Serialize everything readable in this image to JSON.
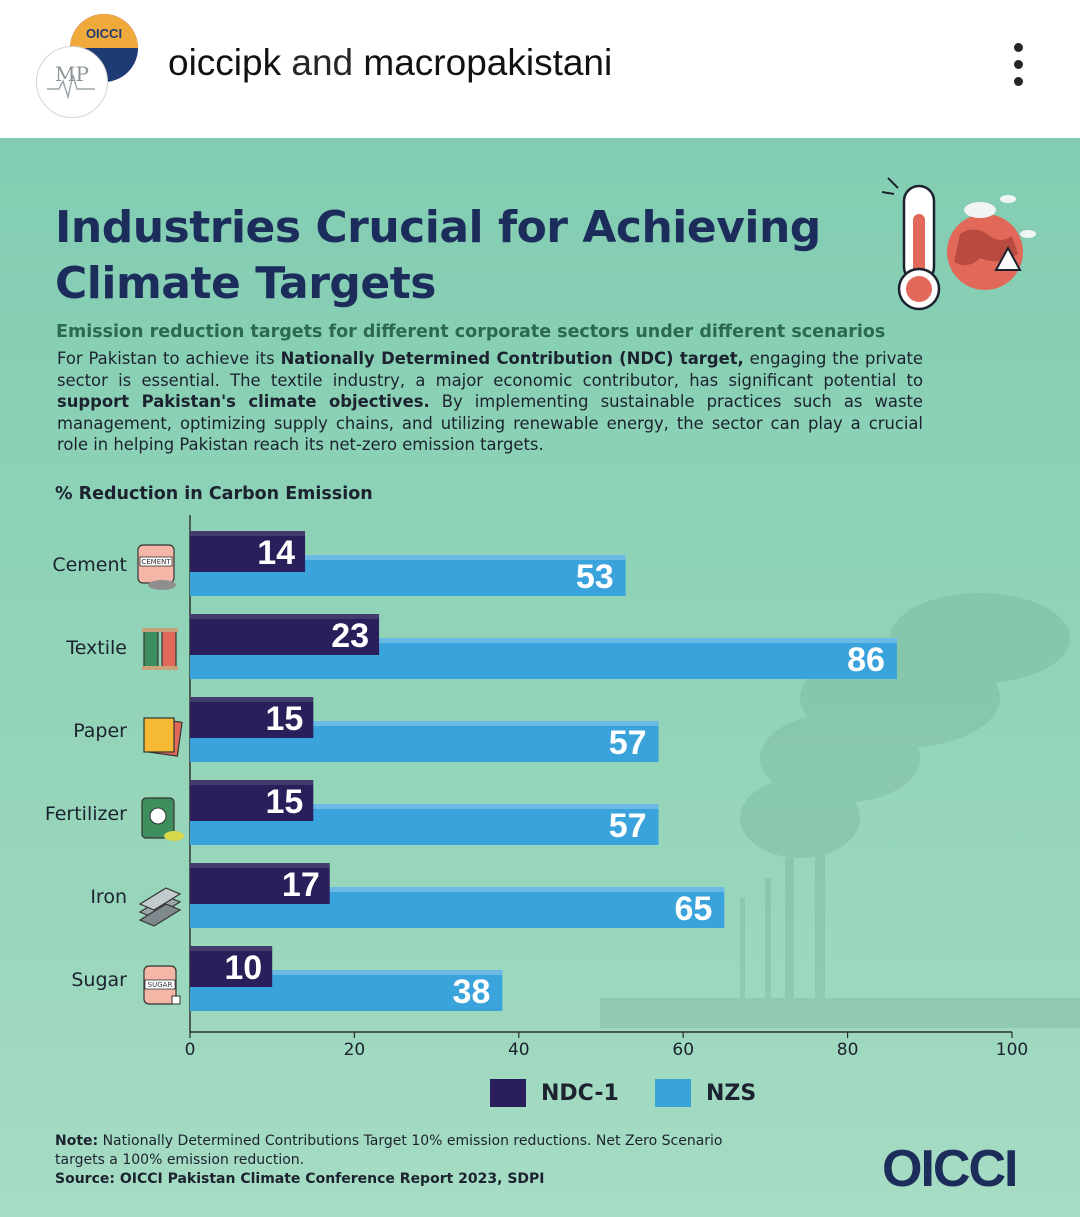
{
  "header": {
    "handle_1": "oiccipk",
    "connector": "and",
    "handle_2": "macropakistani",
    "avatar_back_text": "OICCI",
    "avatar_front_text": "MP",
    "menu_icon": "kebab-menu-icon"
  },
  "post": {
    "title": "Industries Crucial for Achieving Climate Targets",
    "subtitle": "Emission reduction targets for different corporate sectors under different scenarios",
    "description": {
      "p1": "For Pakistan to achieve its ",
      "b1": "Nationally Determined Contribution (NDC) target,",
      "p2": " engaging the private sector is essential. The textile industry, a major economic contributor, has significant potential to ",
      "b2": "support Pakistan's climate objectives.",
      "p3": " By implementing sustainable practices such as waste management, optimizing supply chains, and utilizing renewable energy, the sector can play a crucial role in helping Pakistan reach its net-zero emission targets."
    },
    "note_label": "Note:",
    "note_text": " Nationally Determined Contributions Target 10% emission reductions. Net Zero Scenario targets a 100% emission reduction.",
    "source": "Source: OICCI Pakistan Climate Conference Report 2023, SDPI",
    "logo_text": "OICCI",
    "icon_labels": {
      "cement": "CEMENT",
      "sugar": "SUGAR"
    }
  },
  "chart_data": {
    "type": "bar",
    "orientation": "horizontal",
    "title": "",
    "ylabel": "% Reduction in Carbon Emission",
    "categories": [
      "Cement",
      "Textile",
      "Paper",
      "Fertilizer",
      "Iron",
      "Sugar"
    ],
    "series": [
      {
        "name": "NDC-1",
        "values": [
          14,
          23,
          15,
          15,
          17,
          10
        ],
        "color": "#2a1f5b"
      },
      {
        "name": "NZS",
        "values": [
          53,
          86,
          57,
          57,
          65,
          38
        ],
        "color": "#3aa3dc"
      }
    ],
    "xlim": [
      0,
      100
    ],
    "xticks": [
      "0",
      "20",
      "40",
      "60",
      "80",
      "100"
    ],
    "grid": false,
    "legend": "bottom",
    "data_labels": true
  }
}
